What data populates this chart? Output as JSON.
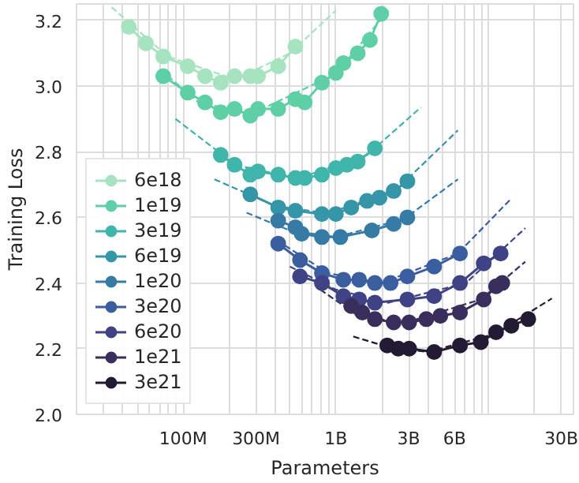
{
  "chart_data": {
    "type": "line",
    "xlabel": "Parameters",
    "ylabel": "Training Loss",
    "log": "x",
    "grid": true,
    "legend": "bottom left",
    "marker": "circle",
    "line_style": "solid",
    "xlim": [
      20000000.0,
      36000000000.0
    ],
    "ylim": [
      2.0,
      3.25
    ],
    "xticks": [
      {
        "value": 20000000.0,
        "label": null
      },
      {
        "value": 30000000.0,
        "label": null
      },
      {
        "value": 40000000.0,
        "label": null
      },
      {
        "value": 50000000.0,
        "label": null
      },
      {
        "value": 60000000.0,
        "label": null
      },
      {
        "value": 70000000.0,
        "label": null
      },
      {
        "value": 80000000.0,
        "label": null
      },
      {
        "value": 90000000.0,
        "label": null
      },
      {
        "value": 100000000.0,
        "label": "100M"
      },
      {
        "value": 200000000.0,
        "label": null
      },
      {
        "value": 300000000.0,
        "label": "300M"
      },
      {
        "value": 400000000.0,
        "label": null
      },
      {
        "value": 500000000.0,
        "label": null
      },
      {
        "value": 600000000.0,
        "label": null
      },
      {
        "value": 700000000.0,
        "label": null
      },
      {
        "value": 800000000.0,
        "label": null
      },
      {
        "value": 900000000.0,
        "label": null
      },
      {
        "value": 1000000000.0,
        "label": "1B"
      },
      {
        "value": 2000000000.0,
        "label": null
      },
      {
        "value": 3000000000.0,
        "label": "3B"
      },
      {
        "value": 4000000000.0,
        "label": null
      },
      {
        "value": 5000000000.0,
        "label": null
      },
      {
        "value": 6000000000.0,
        "label": "6B"
      },
      {
        "value": 7000000000.0,
        "label": null
      },
      {
        "value": 8000000000.0,
        "label": null
      },
      {
        "value": 9000000000.0,
        "label": null
      },
      {
        "value": 10000000000.0,
        "label": null
      },
      {
        "value": 20000000000.0,
        "label": null
      },
      {
        "value": 30000000000.0,
        "label": "30B"
      }
    ],
    "yticks": [
      {
        "value": 2.0,
        "label": "2.0"
      },
      {
        "value": 2.2,
        "label": "2.2"
      },
      {
        "value": 2.4,
        "label": "2.4"
      },
      {
        "value": 2.6,
        "label": "2.6"
      },
      {
        "value": 2.8,
        "label": "2.8"
      },
      {
        "value": 3.0,
        "label": "3.0"
      },
      {
        "value": 3.2,
        "label": "3.2"
      }
    ],
    "series": [
      {
        "type": "line",
        "line_style": "dashed",
        "marker": "none",
        "color": "#a6e3c0",
        "x": [
          34000000.0,
          79000000.0,
          220000000.0,
          500000000.0,
          1000000000.0
        ],
        "values": [
          3.24,
          3.09,
          3.02,
          3.1,
          3.23
        ]
      },
      {
        "type": "line",
        "line_style": "dashed",
        "marker": "none",
        "color": "#5fcfa6",
        "x": [
          71000000.0,
          126000000.0,
          280000000.0,
          1000000000.0,
          2200000000.0
        ],
        "values": [
          3.05,
          2.95,
          2.915,
          3.037,
          3.23
        ]
      },
      {
        "type": "line",
        "line_style": "dashed",
        "marker": "none",
        "color": "#40b5ab",
        "x": [
          89000000.0,
          220000000.0,
          560000000.0,
          1600000000.0,
          3600000000.0
        ],
        "values": [
          2.9,
          2.76,
          2.718,
          2.79,
          2.935
        ]
      },
      {
        "type": "line",
        "line_style": "dashed",
        "marker": "none",
        "color": "#3496a8",
        "x": [
          160000000.0,
          400000000.0,
          890000000.0,
          2500000000.0,
          6300000000.0
        ],
        "values": [
          2.716,
          2.635,
          2.612,
          2.685,
          2.865
        ]
      },
      {
        "type": "line",
        "line_style": "dashed",
        "marker": "none",
        "color": "#357ba6",
        "x": [
          260000000.0,
          500000000.0,
          1000000000.0,
          2800000000.0,
          6300000000.0
        ],
        "values": [
          2.614,
          2.56,
          2.54,
          2.595,
          2.716
        ]
      },
      {
        "type": "line",
        "line_style": "dashed",
        "marker": "none",
        "color": "#3a5ea0",
        "x": [
          410000000.0,
          890000000.0,
          2000000000.0,
          6300000000.0,
          14000000000.0
        ],
        "values": [
          2.53,
          2.43,
          2.4,
          2.49,
          2.656
        ]
      },
      {
        "type": "line",
        "line_style": "dashed",
        "marker": "none",
        "color": "#3f4386",
        "x": [
          500000000.0,
          1000000000.0,
          2200000000.0,
          7100000000.0,
          17400000000.0
        ],
        "values": [
          2.45,
          2.38,
          2.34,
          2.4,
          2.567
        ]
      },
      {
        "type": "line",
        "line_style": "dashed",
        "marker": "none",
        "color": "#3a2e5c",
        "x": [
          790000000.0,
          1400000000.0,
          2800000000.0,
          8900000000.0,
          17400000000.0
        ],
        "values": [
          2.38,
          2.3,
          2.278,
          2.35,
          2.465
        ]
      },
      {
        "type": "line",
        "line_style": "dashed",
        "marker": "none",
        "color": "#231a33",
        "x": [
          1300000000.0,
          2200000000.0,
          4000000000.0,
          11000000000.0,
          26000000000.0
        ],
        "values": [
          2.237,
          2.205,
          2.19,
          2.245,
          2.353
        ]
      },
      {
        "name": "6e18",
        "color": "#a6e3c0",
        "x": [
          44000000.0,
          57000000.0,
          74000000.0,
          107000000.0,
          139000000.0,
          176000000.0,
          217000000.0,
          275000000.0,
          309000000.0,
          419000000.0,
          543000000.0
        ],
        "values": [
          3.18,
          3.13,
          3.09,
          3.06,
          3.03,
          3.01,
          3.03,
          3.03,
          3.03,
          3.06,
          3.12
        ]
      },
      {
        "name": "1e19",
        "color": "#5fcfa6",
        "x": [
          74000000.0,
          107000000.0,
          139000000.0,
          176000000.0,
          217000000.0,
          275000000.0,
          309000000.0,
          419000000.0,
          543000000.0,
          625000000.0,
          810000000.0,
          1000000000.0,
          1120000000.0,
          1390000000.0,
          1670000000.0,
          1980000000.0
        ],
        "values": [
          3.03,
          2.98,
          2.95,
          2.92,
          2.93,
          2.91,
          2.93,
          2.93,
          2.96,
          2.95,
          3.01,
          3.04,
          3.07,
          3.1,
          3.14,
          3.22
        ]
      },
      {
        "name": "3e19",
        "color": "#40b5ab",
        "x": [
          176000000.0,
          217000000.0,
          275000000.0,
          309000000.0,
          419000000.0,
          543000000.0,
          625000000.0,
          810000000.0,
          1000000000.0,
          1180000000.0,
          1390000000.0,
          1800000000.0
        ],
        "values": [
          2.79,
          2.76,
          2.73,
          2.74,
          2.73,
          2.72,
          2.72,
          2.73,
          2.75,
          2.76,
          2.77,
          2.81
        ]
      },
      {
        "name": "6e19",
        "color": "#3496a8",
        "x": [
          275000000.0,
          419000000.0,
          543000000.0,
          810000000.0,
          1000000000.0,
          1260000000.0,
          1600000000.0,
          1930000000.0,
          2390000000.0,
          2940000000.0
        ],
        "values": [
          2.67,
          2.63,
          2.62,
          2.61,
          2.61,
          2.63,
          2.65,
          2.66,
          2.68,
          2.71
        ]
      },
      {
        "name": "1e20",
        "color": "#357ba6",
        "x": [
          419000000.0,
          543000000.0,
          597000000.0,
          810000000.0,
          1070000000.0,
          1720000000.0,
          2390000000.0,
          2940000000.0
        ],
        "values": [
          2.59,
          2.57,
          2.55,
          2.54,
          2.54,
          2.56,
          2.58,
          2.6
        ]
      },
      {
        "name": "3e20",
        "color": "#3a5ea0",
        "x": [
          419000000.0,
          582000000.0,
          810000000.0,
          1120000000.0,
          1420000000.0,
          1800000000.0,
          2280000000.0,
          2940000000.0,
          4400000000.0,
          6500000000.0
        ],
        "values": [
          2.52,
          2.47,
          2.43,
          2.41,
          2.41,
          2.4,
          2.4,
          2.42,
          2.45,
          2.49
        ]
      },
      {
        "name": "6e20",
        "color": "#3f4386",
        "x": [
          582000000.0,
          810000000.0,
          1120000000.0,
          1420000000.0,
          1800000000.0,
          2940000000.0,
          4400000000.0,
          6500000000.0,
          9300000000.0,
          12000000000.0
        ],
        "values": [
          2.42,
          2.4,
          2.36,
          2.35,
          2.34,
          2.35,
          2.36,
          2.4,
          2.46,
          2.49
        ]
      },
      {
        "name": "1e21",
        "color": "#3a2e5c",
        "x": [
          1260000000.0,
          1490000000.0,
          1800000000.0,
          2390000000.0,
          3020000000.0,
          3910000000.0,
          4830000000.0,
          6500000000.0,
          9300000000.0,
          11200000000.0,
          12300000000.0
        ],
        "values": [
          2.33,
          2.31,
          2.29,
          2.28,
          2.28,
          2.29,
          2.3,
          2.31,
          2.35,
          2.39,
          2.4
        ]
      },
      {
        "name": "3e21",
        "color": "#231a33",
        "x": [
          2170000000.0,
          2560000000.0,
          3020000000.0,
          4400000000.0,
          6500000000.0,
          8900000000.0,
          11200000000.0,
          14100000000.0,
          18200000000.0
        ],
        "values": [
          2.21,
          2.2,
          2.2,
          2.19,
          2.21,
          2.22,
          2.25,
          2.27,
          2.29
        ]
      }
    ]
  }
}
